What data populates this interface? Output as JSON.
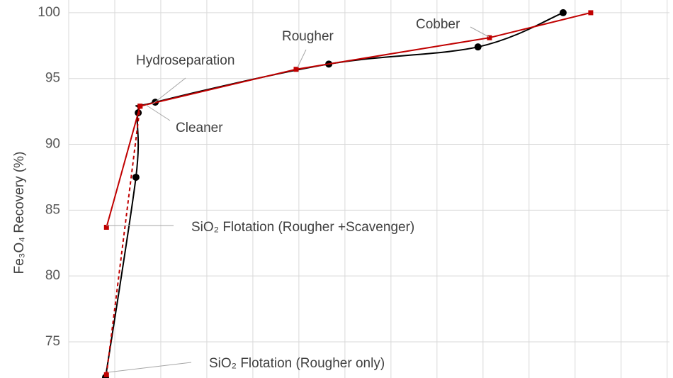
{
  "chart_data": {
    "type": "line",
    "y_label": "Fe₃O₄ Recovery (%)",
    "xlim": [
      0,
      13.05
    ],
    "ylim": [
      72.25,
      100.05
    ],
    "yticks": [
      75,
      80,
      85,
      90,
      95,
      100
    ],
    "grid": true,
    "series": [
      {
        "color": "#000000",
        "style": "curve",
        "x": [
          0.8,
          1.46,
          1.51,
          1.88,
          5.65,
          8.89,
          10.74
        ],
        "values": [
          72.3,
          87.5,
          92.4,
          93.2,
          96.1,
          97.4,
          100
        ]
      },
      {
        "color": "#c00000",
        "style": "solid",
        "x": [
          0.82,
          1.55,
          4.94,
          9.14,
          11.34
        ],
        "values": [
          83.7,
          92.9,
          95.7,
          98.1,
          100
        ]
      },
      {
        "color": "#c00000",
        "style": "dashed",
        "x": [
          0.82,
          1.55
        ],
        "values": [
          72.5,
          92.9
        ]
      }
    ],
    "annotations": [
      "Hydroseparation",
      "Rougher",
      "Cobber",
      "Cleaner",
      "SiO₂ Flotation (Rougher +Scavenger)",
      "SiO₂ Flotation (Rougher only)"
    ]
  }
}
